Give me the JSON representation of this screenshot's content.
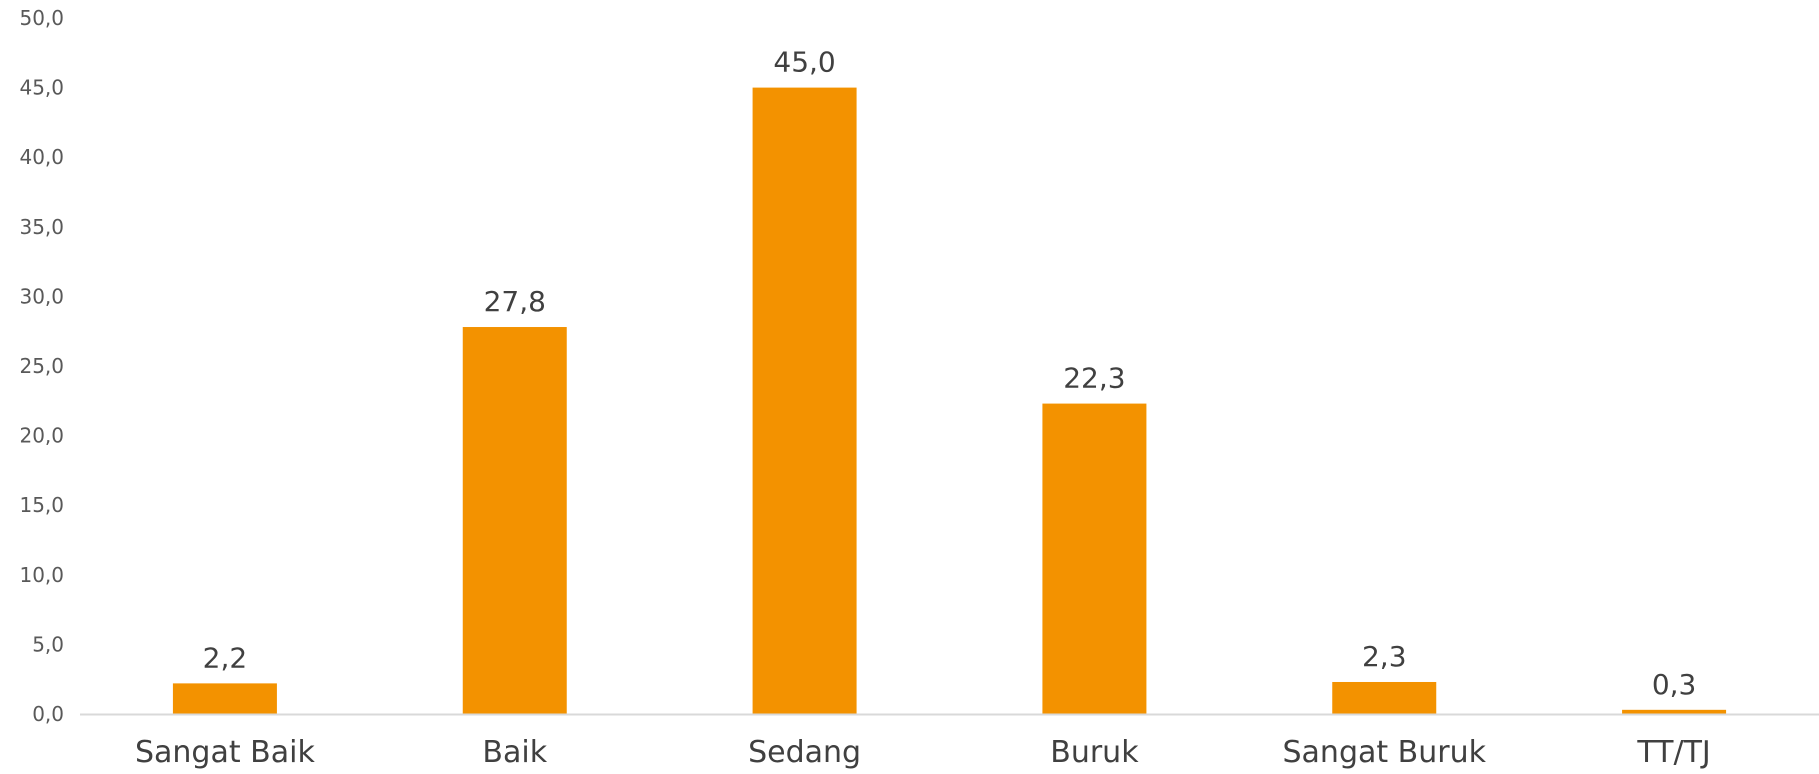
{
  "chart_data": {
    "type": "bar",
    "categories": [
      "Sangat Baik",
      "Baik",
      "Sedang",
      "Buruk",
      "Sangat Buruk",
      "TT/TJ"
    ],
    "values": [
      2.2,
      27.8,
      45.0,
      22.3,
      2.3,
      0.3
    ],
    "value_labels": [
      "2,2",
      "27,8",
      "45,0",
      "22,3",
      "2,3",
      "0,3"
    ],
    "y_ticks": [
      "0,0",
      "5,0",
      "10,0",
      "15,0",
      "20,0",
      "25,0",
      "30,0",
      "35,0",
      "40,0",
      "45,0",
      "50,0"
    ],
    "ylim": [
      0,
      50
    ],
    "title": "",
    "xlabel": "",
    "ylabel": "",
    "grid": false,
    "legend": "none",
    "colors": {
      "bar": "#F39200",
      "axis": "#D9D9D9"
    }
  }
}
